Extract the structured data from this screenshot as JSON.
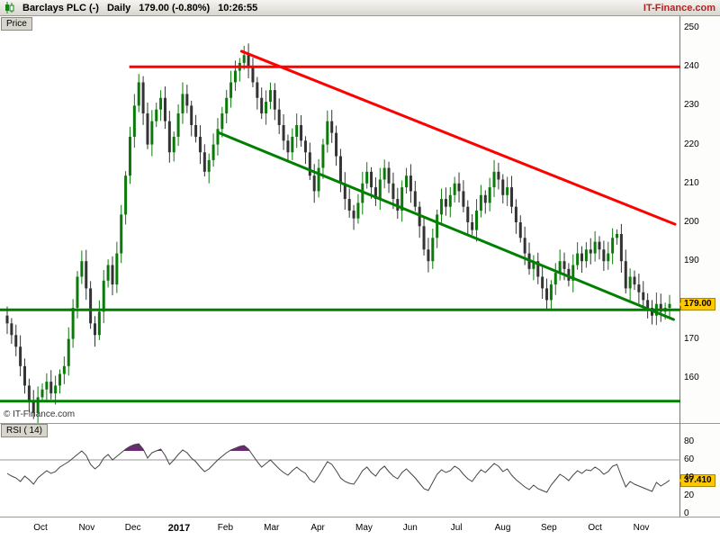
{
  "header": {
    "symbol": "Barclays PLC (-)",
    "timeframe": "Daily",
    "quote": "179.00 (-0.80%)",
    "time": "10:26:55",
    "brand": "IT-Finance.com"
  },
  "price_panel": {
    "tab": "Price",
    "copyright": "© IT-Finance.com",
    "last_price_label": "179.00"
  },
  "rsi_panel": {
    "tab": "RSI ( 14)",
    "last_value_label": "37.410"
  },
  "colors": {
    "candle_up": "#0b7a0b",
    "candle_down": "#333333",
    "line_red": "#ff0000",
    "line_green": "#008000",
    "tag_bg": "#ffc800",
    "rsi_line": "#444444",
    "rsi_fill": "#6a2c70",
    "brand": "#b22222"
  },
  "chart_data": [
    {
      "type": "candlestick",
      "title": "Barclays PLC (-) Daily",
      "ylabel": "Price",
      "ylim": [
        148,
        252
      ],
      "y_ticks": [
        250,
        240,
        230,
        220,
        210,
        200,
        190,
        170,
        160
      ],
      "x_ticks": [
        "Oct",
        "Nov",
        "Dec",
        "2017",
        "Feb",
        "Mar",
        "Apr",
        "May",
        "Jun",
        "Jul",
        "Aug",
        "Sep",
        "Oct",
        "Nov"
      ],
      "bold_tick": "2017",
      "last": 179.0,
      "closes": [
        174,
        171,
        168,
        163,
        158,
        154,
        151,
        155,
        157,
        159,
        156,
        158,
        161,
        163,
        170,
        178,
        186,
        190,
        183,
        174,
        171,
        177,
        185,
        189,
        184,
        192,
        202,
        212,
        222,
        230,
        236,
        228,
        220,
        226,
        229,
        232,
        226,
        218,
        222,
        228,
        233,
        230,
        225,
        222,
        218,
        213,
        216,
        220,
        224,
        228,
        232,
        236,
        239,
        241,
        243,
        240,
        236,
        232,
        228,
        231,
        234,
        229,
        225,
        221,
        218,
        222,
        225,
        221,
        218,
        212,
        208,
        214,
        220,
        226,
        223,
        217,
        210,
        206,
        203,
        201,
        205,
        210,
        213,
        209,
        206,
        211,
        214,
        210,
        206,
        203,
        209,
        212,
        208,
        204,
        199,
        193,
        190,
        196,
        202,
        206,
        204,
        207,
        210,
        208,
        204,
        200,
        198,
        203,
        207,
        205,
        209,
        213,
        211,
        207,
        209,
        204,
        200,
        196,
        192,
        188,
        190,
        186,
        183,
        180,
        184,
        187,
        190,
        188,
        185,
        189,
        192,
        190,
        193,
        192,
        195,
        193,
        190,
        192,
        196,
        197,
        190,
        183,
        186,
        184,
        182,
        180,
        178,
        176,
        179,
        177,
        178,
        179
      ],
      "overlays": [
        {
          "type": "hline",
          "y": 240,
          "x1": 0.19,
          "x2": 1.0,
          "color": "#ff0000",
          "label": "horizontal-resistance"
        },
        {
          "type": "trendline",
          "x1": 0.355,
          "y1": 244,
          "x2": 0.992,
          "y2": 199.5,
          "color": "#ff0000",
          "label": "descending-resistance"
        },
        {
          "type": "trendline",
          "x1": 0.322,
          "y1": 223,
          "x2": 0.99,
          "y2": 175,
          "color": "#008000",
          "label": "descending-support"
        },
        {
          "type": "hline",
          "y": 177.5,
          "x1": 0.0,
          "x2": 1.0,
          "color": "#008000",
          "label": "horizontal-support-upper"
        },
        {
          "type": "hline",
          "y": 154,
          "x1": 0.0,
          "x2": 1.0,
          "color": "#008000",
          "label": "horizontal-support-lower"
        }
      ]
    },
    {
      "type": "line",
      "name": "RSI (14)",
      "ylim": [
        0,
        100
      ],
      "y_ticks": [
        80,
        60,
        40,
        20,
        0
      ],
      "levels": [
        60
      ],
      "overbought": 70,
      "last": 37.41,
      "values": [
        45,
        42,
        40,
        36,
        42,
        38,
        33,
        40,
        44,
        48,
        45,
        47,
        52,
        55,
        58,
        62,
        66,
        70,
        65,
        55,
        50,
        54,
        62,
        66,
        60,
        64,
        68,
        72,
        75,
        77,
        78,
        72,
        62,
        68,
        70,
        72,
        65,
        55,
        60,
        66,
        71,
        68,
        62,
        58,
        52,
        47,
        50,
        55,
        60,
        64,
        68,
        71,
        73,
        75,
        76,
        72,
        65,
        58,
        52,
        56,
        60,
        55,
        50,
        46,
        43,
        48,
        52,
        48,
        45,
        38,
        35,
        42,
        50,
        58,
        55,
        48,
        40,
        36,
        34,
        33,
        40,
        48,
        52,
        46,
        42,
        49,
        53,
        47,
        42,
        39,
        46,
        50,
        45,
        40,
        34,
        28,
        26,
        35,
        44,
        49,
        46,
        48,
        53,
        50,
        44,
        39,
        36,
        43,
        49,
        46,
        51,
        56,
        53,
        47,
        50,
        43,
        38,
        34,
        30,
        27,
        32,
        28,
        26,
        24,
        32,
        38,
        44,
        41,
        37,
        43,
        48,
        45,
        49,
        48,
        52,
        49,
        44,
        47,
        53,
        55,
        42,
        30,
        36,
        33,
        31,
        29,
        27,
        25,
        35,
        31,
        34,
        37.41
      ]
    }
  ]
}
